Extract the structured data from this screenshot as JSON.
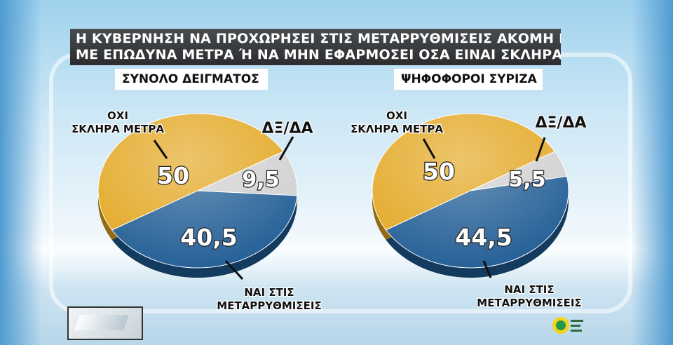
{
  "question": {
    "line1": "Η ΚΥΒΕΡΝΗΣΗ ΝΑ ΠΡΟΧΩΡΗΣΕΙ ΣΤΙΣ ΜΕΤΑΡΡΥΘΜΙΣΕΙΣ ΑΚΟΜΗ ΚΑΙ",
    "line2": "ΜΕ ΕΠΩΔΥΝΑ ΜΕΤΡΑ Ή ΝΑ ΜΗΝ ΕΦΑΡΜΟΣΕΙ ΟΣΑ ΕΙΝΑΙ ΣΚΛΗΡΑ ;"
  },
  "colors": {
    "no_hard_measures": "#e2a51c",
    "yes_reforms": "#1d5a93",
    "dk_na": "#cfcfcf"
  },
  "chart_data": [
    {
      "type": "pie",
      "title": "ΣΥΝΟΛΟ ΔΕΙΓΜΑΤΟΣ",
      "slices": [
        {
          "label": "ΟΧΙ ΣΚΛΗΡΑ ΜΕΤΡΑ",
          "label_lines": [
            "ΟΧΙ",
            "ΣΚΛΗΡΑ ΜΕΤΡΑ"
          ],
          "value": 50,
          "value_text": "50",
          "color_key": "no_hard_measures"
        },
        {
          "label": "ΔΞ/ΔΑ",
          "label_lines": [
            "ΔΞ/ΔΑ"
          ],
          "value": 9.5,
          "value_text": "9,5",
          "color_key": "dk_na"
        },
        {
          "label": "ΝΑΙ ΣΤΙΣ ΜΕΤΑΡΡΥΘΜΙΣΕΙΣ",
          "label_lines": [
            "ΝΑΙ ΣΤΙΣ",
            "ΜΕΤΑΡΡΥΘΜΙΣΕΙΣ"
          ],
          "value": 40.5,
          "value_text": "40,5",
          "color_key": "yes_reforms"
        }
      ]
    },
    {
      "type": "pie",
      "title": "ΨΗΦΟΦΟΡΟΙ ΣΥΡΙΖΑ",
      "slices": [
        {
          "label": "ΟΧΙ ΣΚΛΗΡΑ ΜΕΤΡΑ",
          "label_lines": [
            "ΟΧΙ",
            "ΣΚΛΗΡΑ ΜΕΤΡΑ"
          ],
          "value": 50,
          "value_text": "50",
          "color_key": "no_hard_measures"
        },
        {
          "label": "ΔΞ/ΔΑ",
          "label_lines": [
            "ΔΞ/ΔΑ"
          ],
          "value": 5.5,
          "value_text": "5,5",
          "color_key": "dk_na"
        },
        {
          "label": "ΝΑΙ ΣΤΙΣ ΜΕΤΑΡΡΥΘΜΙΣΕΙΣ",
          "label_lines": [
            "ΝΑΙ ΣΤΙΣ",
            "ΜΕΤΑΡΡΥΘΜΙΣΕΙΣ"
          ],
          "value": 44.5,
          "value_text": "44,5",
          "color_key": "yes_reforms"
        }
      ]
    }
  ]
}
